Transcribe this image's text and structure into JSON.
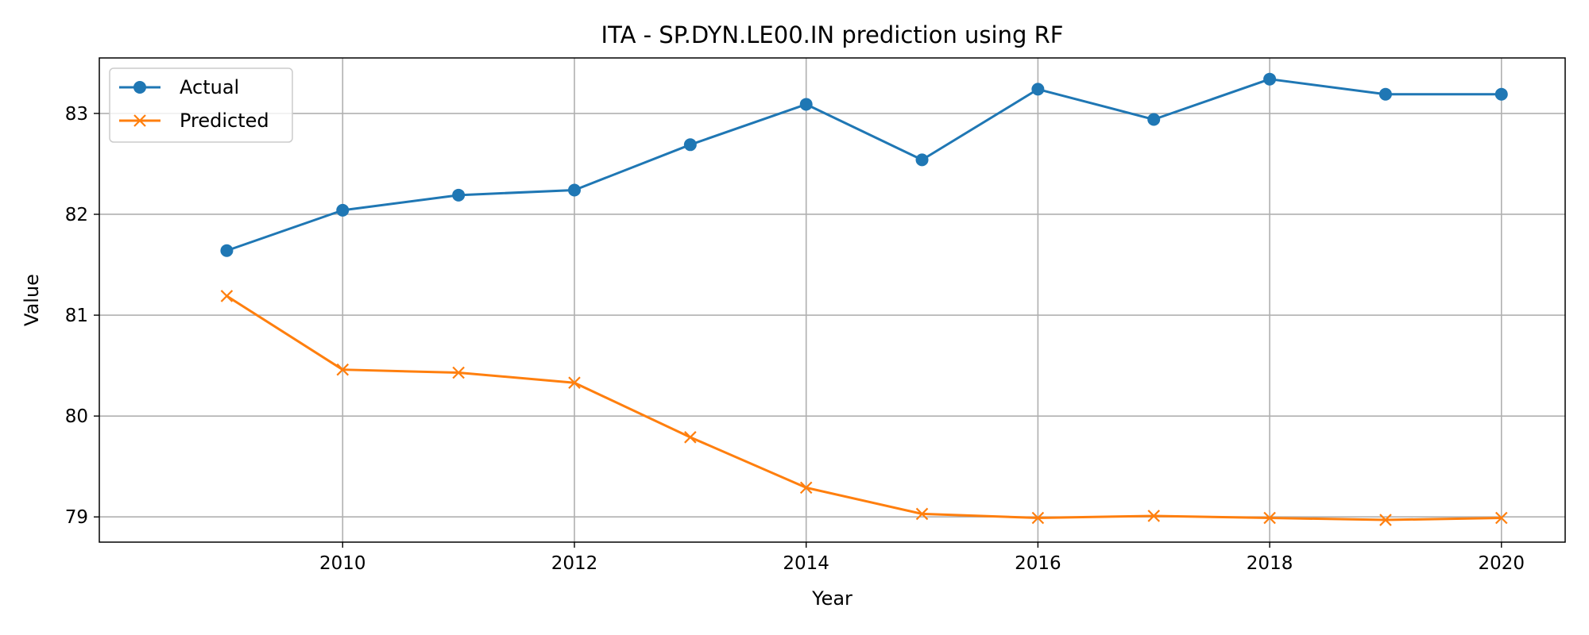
{
  "chart_data": {
    "type": "line",
    "title": "ITA - SP.DYN.LE00.IN prediction using RF",
    "xlabel": "Year",
    "ylabel": "Value",
    "x": [
      2009,
      2010,
      2011,
      2012,
      2013,
      2014,
      2015,
      2016,
      2017,
      2018,
      2019,
      2020
    ],
    "xlim": [
      2007.9,
      2020.55
    ],
    "ylim": [
      78.75,
      83.55
    ],
    "xticks": [
      2010,
      2012,
      2014,
      2016,
      2018,
      2020
    ],
    "yticks": [
      79,
      80,
      81,
      82,
      83
    ],
    "grid": true,
    "legend_position": "top-left",
    "series": [
      {
        "name": "Actual",
        "color": "#1f77b4",
        "marker": "circle",
        "values": [
          81.64,
          82.04,
          82.19,
          82.24,
          82.69,
          83.09,
          82.54,
          83.24,
          82.94,
          83.34,
          83.19,
          83.19
        ]
      },
      {
        "name": "Predicted",
        "color": "#ff7f0e",
        "marker": "x",
        "values": [
          81.19,
          80.46,
          80.43,
          80.33,
          79.79,
          79.29,
          79.03,
          78.99,
          79.01,
          78.99,
          78.97,
          78.99
        ]
      }
    ]
  }
}
